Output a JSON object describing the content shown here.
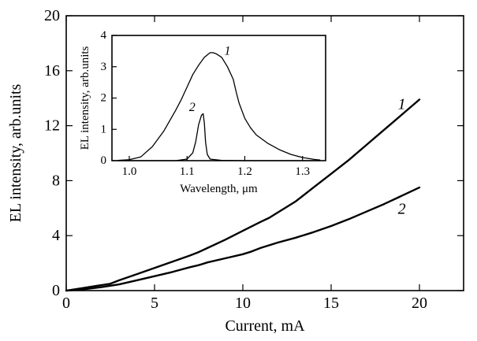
{
  "chart_data": [
    {
      "type": "line",
      "xlabel": "Current, mA",
      "ylabel": "EL intensity, arb.units",
      "xlim": [
        0,
        22.5
      ],
      "ylim": [
        0,
        20
      ],
      "xticks": [
        0,
        5,
        10,
        15,
        20
      ],
      "yticks": [
        0,
        4,
        8,
        12,
        16,
        20
      ],
      "xtick_labels": [
        "0",
        "5",
        "10",
        "15",
        "20"
      ],
      "ytick_labels": [
        "0",
        "4",
        "8",
        "12",
        "16",
        "20"
      ],
      "grid": false,
      "series": [
        {
          "name": "1",
          "x": [
            0,
            1,
            2,
            2.5,
            3,
            4,
            5,
            6,
            7,
            7.5,
            8,
            9,
            10,
            11,
            11.5,
            12,
            13,
            14,
            15,
            16,
            17,
            18,
            19,
            20
          ],
          "values": [
            0,
            0.2,
            0.4,
            0.5,
            0.75,
            1.2,
            1.65,
            2.1,
            2.55,
            2.8,
            3.1,
            3.7,
            4.35,
            5.0,
            5.3,
            5.7,
            6.5,
            7.5,
            8.5,
            9.5,
            10.6,
            11.7,
            12.8,
            13.9
          ],
          "tag": "1",
          "tag_at": [
            19,
            13.2
          ]
        },
        {
          "name": "2",
          "x": [
            0,
            1,
            2,
            3,
            4,
            5,
            6,
            7,
            7.5,
            8,
            9,
            10,
            10.5,
            11,
            12,
            13,
            14,
            15,
            16,
            17,
            18,
            19,
            20
          ],
          "values": [
            0,
            0.1,
            0.25,
            0.45,
            0.75,
            1.05,
            1.35,
            1.7,
            1.85,
            2.05,
            2.35,
            2.65,
            2.85,
            3.1,
            3.5,
            3.85,
            4.25,
            4.7,
            5.2,
            5.75,
            6.3,
            6.9,
            7.5
          ],
          "tag": "2",
          "tag_at": [
            19,
            5.6
          ]
        }
      ]
    },
    {
      "type": "line",
      "xlabel": "Wavelength, μm",
      "ylabel": "EL intensity, arb.units",
      "xlim": [
        0.97,
        1.34
      ],
      "ylim": [
        0,
        4
      ],
      "xticks": [
        1.0,
        1.1,
        1.2,
        1.3
      ],
      "yticks": [
        0,
        1,
        2,
        3,
        4
      ],
      "xtick_labels": [
        "1.0",
        "1.1",
        "1.2",
        "1.3"
      ],
      "ytick_labels": [
        "0",
        "1",
        "2",
        "3",
        "4"
      ],
      "grid": false,
      "series": [
        {
          "name": "1",
          "x": [
            0.98,
            1.0,
            1.02,
            1.04,
            1.06,
            1.08,
            1.09,
            1.1,
            1.11,
            1.12,
            1.13,
            1.14,
            1.145,
            1.15,
            1.16,
            1.17,
            1.18,
            1.185,
            1.19,
            1.2,
            1.21,
            1.22,
            1.24,
            1.26,
            1.28,
            1.3,
            1.32,
            1.33
          ],
          "values": [
            0.01,
            0.03,
            0.12,
            0.45,
            0.95,
            1.6,
            1.95,
            2.35,
            2.75,
            3.05,
            3.3,
            3.45,
            3.45,
            3.42,
            3.3,
            3.0,
            2.6,
            2.2,
            1.85,
            1.35,
            1.05,
            0.82,
            0.55,
            0.35,
            0.2,
            0.1,
            0.04,
            0.02
          ],
          "tag": "1",
          "tag_at": [
            1.17,
            3.38
          ]
        },
        {
          "name": "2",
          "x": [
            0.98,
            1.04,
            1.08,
            1.1,
            1.11,
            1.115,
            1.12,
            1.125,
            1.128,
            1.13,
            1.132,
            1.135,
            1.14,
            1.16,
            1.2,
            1.33
          ],
          "values": [
            0.0,
            0.0,
            0.0,
            0.05,
            0.25,
            0.6,
            1.15,
            1.45,
            1.5,
            1.2,
            0.6,
            0.2,
            0.05,
            0.01,
            0.0,
            0.0
          ],
          "tag": "2",
          "tag_at": [
            1.109,
            1.58
          ]
        }
      ]
    }
  ]
}
